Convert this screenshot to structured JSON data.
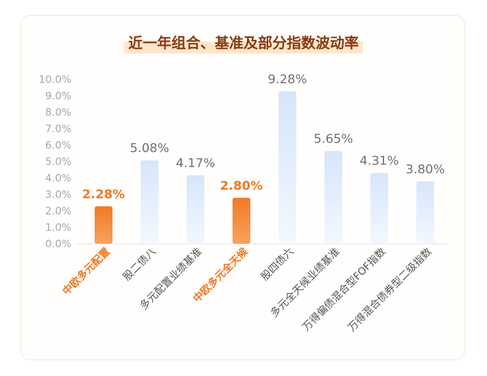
{
  "chart_data": {
    "type": "bar",
    "title": "近一年组合、基准及部分指数波动率",
    "categories": [
      "中欧多元配置",
      "股二债八",
      "多元配置业绩基准",
      "中欧多元全天候",
      "股四债六",
      "多元全天候业绩基准",
      "万得偏债混合型FOF指数",
      "万得混合债券型二级指数"
    ],
    "values": [
      2.28,
      5.08,
      4.17,
      2.8,
      9.28,
      5.65,
      4.31,
      3.8
    ],
    "value_labels": [
      "2.28%",
      "5.08%",
      "4.17%",
      "2.80%",
      "9.28%",
      "5.65%",
      "4.31%",
      "3.80%"
    ],
    "highlight": [
      true,
      false,
      false,
      true,
      false,
      false,
      false,
      false
    ],
    "ylim": [
      0,
      10
    ],
    "yticks": [
      "0.0%",
      "1.0%",
      "2.0%",
      "3.0%",
      "4.0%",
      "5.0%",
      "6.0%",
      "7.0%",
      "8.0%",
      "9.0%",
      "10.0%"
    ],
    "xlabel": "",
    "ylabel": "",
    "grid": false,
    "colors": {
      "highlight_top": "#f07a24",
      "highlight_bottom": "#f8a25e",
      "normal_top": "#d6e6fb",
      "normal_bottom": "#f3f8fe",
      "highlight_text": "#f07a24",
      "text": "#707070",
      "axis_text": "#a8a8a8"
    }
  }
}
